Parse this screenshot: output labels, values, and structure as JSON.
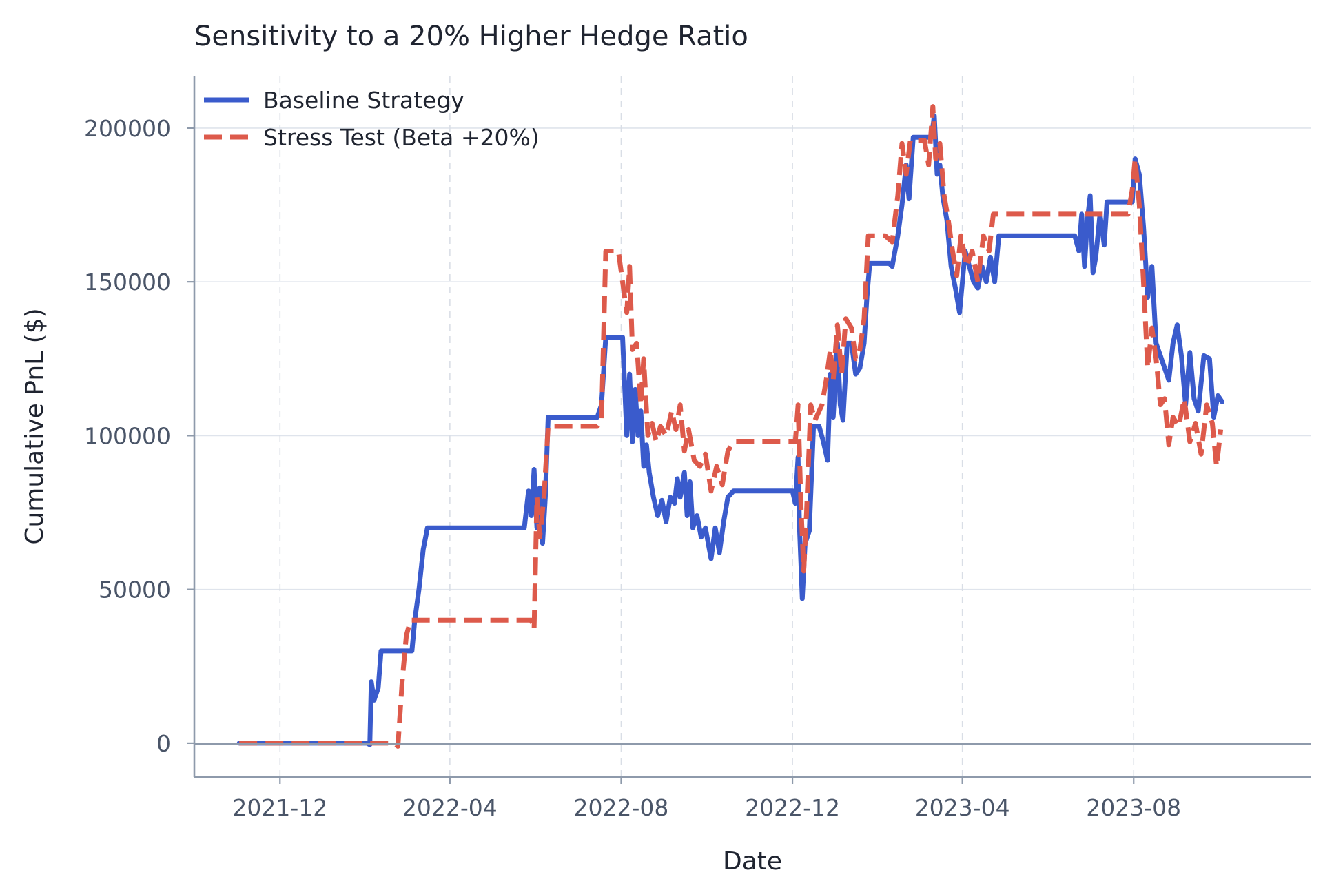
{
  "chart_data": {
    "type": "line",
    "title": "Sensitivity to a 20% Higher Hedge Ratio",
    "xlabel": "Date",
    "ylabel": "Cumulative PnL ($)",
    "xlim": [
      "2021-10-01",
      "2023-12-05"
    ],
    "ylim": [
      -11000,
      217000
    ],
    "x_ticks": [
      "2021-12",
      "2022-04",
      "2022-08",
      "2022-12",
      "2023-04",
      "2023-08"
    ],
    "y_ticks": [
      0,
      50000,
      100000,
      150000,
      200000
    ],
    "grid": true,
    "legend_position": "top-left",
    "series": [
      {
        "name": "Baseline Strategy",
        "color": "#3a5bcc",
        "style": "solid",
        "points": [
          [
            "2021-11-02",
            0
          ],
          [
            "2022-02-01",
            0
          ],
          [
            "2022-02-03",
            -500
          ],
          [
            "2022-02-04",
            20000
          ],
          [
            "2022-02-06",
            14000
          ],
          [
            "2022-02-09",
            18000
          ],
          [
            "2022-02-11",
            30000
          ],
          [
            "2022-03-05",
            30000
          ],
          [
            "2022-03-07",
            40000
          ],
          [
            "2022-03-10",
            50000
          ],
          [
            "2022-03-13",
            63000
          ],
          [
            "2022-03-16",
            70000
          ],
          [
            "2022-05-24",
            70000
          ],
          [
            "2022-05-27",
            82000
          ],
          [
            "2022-05-29",
            74000
          ],
          [
            "2022-05-31",
            89000
          ],
          [
            "2022-06-02",
            70000
          ],
          [
            "2022-06-04",
            83000
          ],
          [
            "2022-06-06",
            65000
          ],
          [
            "2022-06-08",
            80000
          ],
          [
            "2022-06-10",
            106000
          ],
          [
            "2022-07-15",
            106000
          ],
          [
            "2022-07-18",
            110000
          ],
          [
            "2022-07-21",
            132000
          ],
          [
            "2022-08-02",
            132000
          ],
          [
            "2022-08-05",
            100000
          ],
          [
            "2022-08-07",
            120000
          ],
          [
            "2022-08-09",
            98000
          ],
          [
            "2022-08-11",
            115000
          ],
          [
            "2022-08-13",
            100000
          ],
          [
            "2022-08-15",
            108000
          ],
          [
            "2022-08-17",
            90000
          ],
          [
            "2022-08-19",
            97000
          ],
          [
            "2022-08-21",
            88000
          ],
          [
            "2022-08-24",
            80000
          ],
          [
            "2022-08-27",
            74000
          ],
          [
            "2022-08-30",
            79000
          ],
          [
            "2022-09-02",
            72000
          ],
          [
            "2022-09-05",
            80000
          ],
          [
            "2022-09-08",
            78000
          ],
          [
            "2022-09-10",
            86000
          ],
          [
            "2022-09-12",
            80000
          ],
          [
            "2022-09-15",
            88000
          ],
          [
            "2022-09-17",
            74000
          ],
          [
            "2022-09-19",
            85000
          ],
          [
            "2022-09-21",
            70000
          ],
          [
            "2022-09-24",
            74000
          ],
          [
            "2022-09-27",
            67000
          ],
          [
            "2022-09-30",
            70000
          ],
          [
            "2022-10-04",
            60000
          ],
          [
            "2022-10-07",
            70000
          ],
          [
            "2022-10-10",
            62000
          ],
          [
            "2022-10-13",
            72000
          ],
          [
            "2022-10-16",
            80000
          ],
          [
            "2022-10-20",
            82000
          ],
          [
            "2022-12-01",
            82000
          ],
          [
            "2022-12-03",
            78000
          ],
          [
            "2022-12-05",
            93000
          ],
          [
            "2022-12-06",
            70000
          ],
          [
            "2022-12-08",
            47000
          ],
          [
            "2022-12-10",
            65000
          ],
          [
            "2022-12-13",
            69000
          ],
          [
            "2022-12-16",
            103000
          ],
          [
            "2022-12-20",
            103000
          ],
          [
            "2022-12-23",
            98000
          ],
          [
            "2022-12-26",
            92000
          ],
          [
            "2022-12-28",
            120000
          ],
          [
            "2022-12-30",
            106000
          ],
          [
            "2023-01-02",
            130000
          ],
          [
            "2023-01-04",
            110000
          ],
          [
            "2023-01-06",
            105000
          ],
          [
            "2023-01-09",
            130000
          ],
          [
            "2023-01-12",
            130000
          ],
          [
            "2023-01-15",
            120000
          ],
          [
            "2023-01-18",
            122000
          ],
          [
            "2023-01-21",
            130000
          ],
          [
            "2023-01-23",
            145000
          ],
          [
            "2023-01-25",
            156000
          ],
          [
            "2023-02-08",
            156000
          ],
          [
            "2023-02-10",
            155000
          ],
          [
            "2023-02-14",
            165000
          ],
          [
            "2023-02-17",
            175000
          ],
          [
            "2023-02-20",
            188000
          ],
          [
            "2023-02-22",
            177000
          ],
          [
            "2023-02-25",
            197000
          ],
          [
            "2023-03-10",
            197000
          ],
          [
            "2023-03-12",
            204000
          ],
          [
            "2023-03-14",
            185000
          ],
          [
            "2023-03-16",
            188000
          ],
          [
            "2023-03-18",
            178000
          ],
          [
            "2023-03-21",
            170000
          ],
          [
            "2023-03-24",
            155000
          ],
          [
            "2023-03-27",
            148000
          ],
          [
            "2023-03-30",
            140000
          ],
          [
            "2023-04-03",
            160000
          ],
          [
            "2023-04-06",
            155000
          ],
          [
            "2023-04-09",
            150000
          ],
          [
            "2023-04-12",
            148000
          ],
          [
            "2023-04-15",
            155000
          ],
          [
            "2023-04-18",
            150000
          ],
          [
            "2023-04-21",
            158000
          ],
          [
            "2023-04-24",
            150000
          ],
          [
            "2023-04-27",
            165000
          ],
          [
            "2023-06-20",
            165000
          ],
          [
            "2023-06-23",
            160000
          ],
          [
            "2023-06-25",
            172000
          ],
          [
            "2023-06-27",
            155000
          ],
          [
            "2023-06-29",
            170000
          ],
          [
            "2023-07-01",
            178000
          ],
          [
            "2023-07-03",
            153000
          ],
          [
            "2023-07-05",
            158000
          ],
          [
            "2023-07-08",
            172000
          ],
          [
            "2023-07-11",
            162000
          ],
          [
            "2023-07-13",
            176000
          ],
          [
            "2023-07-31",
            176000
          ],
          [
            "2023-08-02",
            190000
          ],
          [
            "2023-08-05",
            185000
          ],
          [
            "2023-08-08",
            168000
          ],
          [
            "2023-08-11",
            145000
          ],
          [
            "2023-08-14",
            155000
          ],
          [
            "2023-08-17",
            130000
          ],
          [
            "2023-08-20",
            126000
          ],
          [
            "2023-08-23",
            122000
          ],
          [
            "2023-08-26",
            118000
          ],
          [
            "2023-08-29",
            130000
          ],
          [
            "2023-09-01",
            136000
          ],
          [
            "2023-09-04",
            126000
          ],
          [
            "2023-09-07",
            110000
          ],
          [
            "2023-09-10",
            127000
          ],
          [
            "2023-09-13",
            112000
          ],
          [
            "2023-09-16",
            108000
          ],
          [
            "2023-09-20",
            126000
          ],
          [
            "2023-09-24",
            125000
          ],
          [
            "2023-09-27",
            106000
          ],
          [
            "2023-09-30",
            113000
          ],
          [
            "2023-10-03",
            111000
          ]
        ]
      },
      {
        "name": "Stress Test (Beta +20%)",
        "color": "#dd5a4b",
        "style": "dashed",
        "points": [
          [
            "2021-11-02",
            0
          ],
          [
            "2022-02-20",
            0
          ],
          [
            "2022-02-23",
            -1000
          ],
          [
            "2022-02-26",
            20000
          ],
          [
            "2022-03-01",
            35000
          ],
          [
            "2022-03-04",
            40000
          ],
          [
            "2022-05-29",
            40000
          ],
          [
            "2022-05-31",
            37000
          ],
          [
            "2022-06-02",
            80000
          ],
          [
            "2022-06-04",
            67000
          ],
          [
            "2022-06-07",
            80000
          ],
          [
            "2022-06-10",
            103000
          ],
          [
            "2022-07-15",
            103000
          ],
          [
            "2022-07-18",
            105000
          ],
          [
            "2022-07-21",
            160000
          ],
          [
            "2022-07-30",
            160000
          ],
          [
            "2022-08-02",
            150000
          ],
          [
            "2022-08-05",
            140000
          ],
          [
            "2022-08-07",
            155000
          ],
          [
            "2022-08-09",
            128000
          ],
          [
            "2022-08-12",
            130000
          ],
          [
            "2022-08-15",
            110000
          ],
          [
            "2022-08-17",
            125000
          ],
          [
            "2022-08-20",
            100000
          ],
          [
            "2022-08-23",
            104000
          ],
          [
            "2022-08-26",
            98000
          ],
          [
            "2022-08-29",
            103000
          ],
          [
            "2022-09-02",
            100000
          ],
          [
            "2022-09-06",
            108000
          ],
          [
            "2022-09-09",
            102000
          ],
          [
            "2022-09-12",
            110000
          ],
          [
            "2022-09-15",
            95000
          ],
          [
            "2022-09-18",
            102000
          ],
          [
            "2022-09-22",
            92000
          ],
          [
            "2022-09-26",
            90000
          ],
          [
            "2022-09-30",
            94000
          ],
          [
            "2022-10-04",
            82000
          ],
          [
            "2022-10-08",
            90000
          ],
          [
            "2022-10-12",
            84000
          ],
          [
            "2022-10-16",
            95000
          ],
          [
            "2022-10-20",
            98000
          ],
          [
            "2022-12-03",
            98000
          ],
          [
            "2022-12-05",
            110000
          ],
          [
            "2022-12-07",
            78000
          ],
          [
            "2022-12-09",
            56000
          ],
          [
            "2022-12-11",
            75000
          ],
          [
            "2022-12-14",
            110000
          ],
          [
            "2022-12-17",
            105000
          ],
          [
            "2022-12-22",
            110000
          ],
          [
            "2022-12-25",
            118000
          ],
          [
            "2022-12-28",
            128000
          ],
          [
            "2022-12-30",
            118000
          ],
          [
            "2023-01-02",
            136000
          ],
          [
            "2023-01-05",
            120000
          ],
          [
            "2023-01-08",
            138000
          ],
          [
            "2023-01-12",
            135000
          ],
          [
            "2023-01-15",
            125000
          ],
          [
            "2023-01-18",
            128000
          ],
          [
            "2023-01-21",
            138000
          ],
          [
            "2023-01-24",
            165000
          ],
          [
            "2023-02-05",
            165000
          ],
          [
            "2023-02-10",
            163000
          ],
          [
            "2023-02-14",
            178000
          ],
          [
            "2023-02-17",
            195000
          ],
          [
            "2023-02-20",
            185000
          ],
          [
            "2023-02-23",
            196000
          ],
          [
            "2023-03-05",
            196000
          ],
          [
            "2023-03-08",
            188000
          ],
          [
            "2023-03-11",
            207000
          ],
          [
            "2023-03-13",
            190000
          ],
          [
            "2023-03-16",
            195000
          ],
          [
            "2023-03-19",
            178000
          ],
          [
            "2023-03-22",
            170000
          ],
          [
            "2023-03-25",
            160000
          ],
          [
            "2023-03-28",
            152000
          ],
          [
            "2023-03-31",
            165000
          ],
          [
            "2023-04-04",
            155000
          ],
          [
            "2023-04-08",
            160000
          ],
          [
            "2023-04-12",
            150000
          ],
          [
            "2023-04-16",
            165000
          ],
          [
            "2023-04-20",
            160000
          ],
          [
            "2023-04-23",
            172000
          ],
          [
            "2023-07-28",
            172000
          ],
          [
            "2023-07-31",
            180000
          ],
          [
            "2023-08-02",
            190000
          ],
          [
            "2023-08-05",
            175000
          ],
          [
            "2023-08-08",
            150000
          ],
          [
            "2023-08-11",
            122000
          ],
          [
            "2023-08-14",
            135000
          ],
          [
            "2023-08-17",
            125000
          ],
          [
            "2023-08-20",
            110000
          ],
          [
            "2023-08-23",
            112000
          ],
          [
            "2023-08-26",
            97000
          ],
          [
            "2023-08-29",
            106000
          ],
          [
            "2023-09-02",
            103000
          ],
          [
            "2023-09-06",
            112000
          ],
          [
            "2023-09-10",
            98000
          ],
          [
            "2023-09-14",
            104000
          ],
          [
            "2023-09-18",
            94000
          ],
          [
            "2023-09-22",
            110000
          ],
          [
            "2023-09-26",
            104000
          ],
          [
            "2023-09-29",
            90000
          ],
          [
            "2023-10-02",
            102000
          ]
        ]
      }
    ]
  }
}
